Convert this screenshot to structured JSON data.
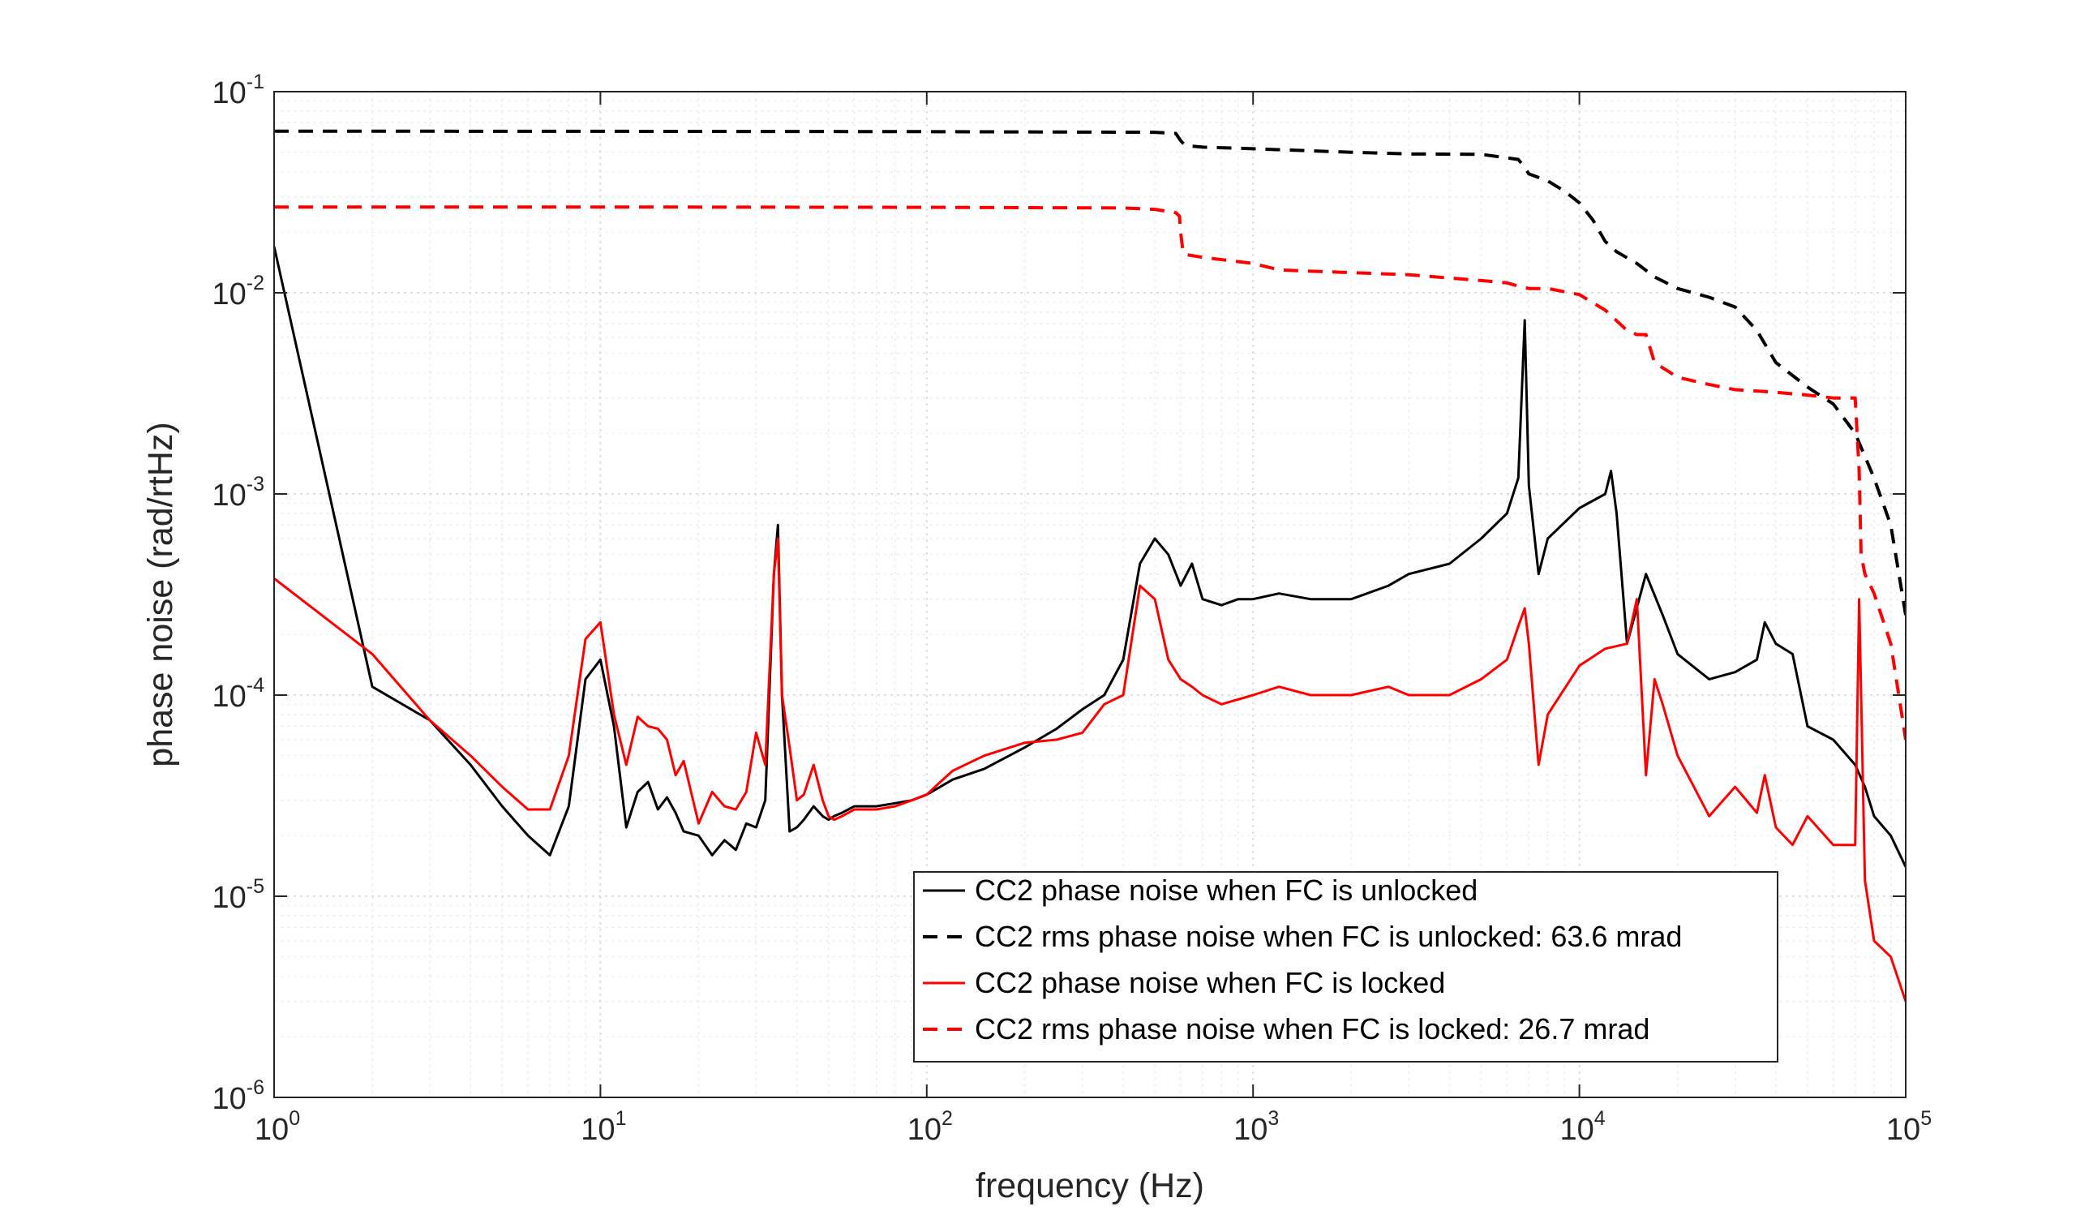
{
  "chart_data": {
    "type": "line",
    "xlabel": "frequency (Hz)",
    "ylabel": "phase noise (rad/rtHz)",
    "x_scale": "log",
    "y_scale": "log",
    "xlim": [
      1,
      100000
    ],
    "ylim": [
      1e-06,
      0.1
    ],
    "grid": true,
    "x_ticks": [
      {
        "value": 1,
        "base": "10",
        "exp": "0"
      },
      {
        "value": 10,
        "base": "10",
        "exp": "1"
      },
      {
        "value": 100,
        "base": "10",
        "exp": "2"
      },
      {
        "value": 1000,
        "base": "10",
        "exp": "3"
      },
      {
        "value": 10000,
        "base": "10",
        "exp": "4"
      },
      {
        "value": 100000,
        "base": "10",
        "exp": "5"
      }
    ],
    "y_ticks": [
      {
        "value": 1e-06,
        "base": "10",
        "exp": "-6"
      },
      {
        "value": 1e-05,
        "base": "10",
        "exp": "-5"
      },
      {
        "value": 0.0001,
        "base": "10",
        "exp": "-4"
      },
      {
        "value": 0.001,
        "base": "10",
        "exp": "-3"
      },
      {
        "value": 0.01,
        "base": "10",
        "exp": "-2"
      },
      {
        "value": 0.1,
        "base": "10",
        "exp": "-1"
      }
    ],
    "legend_position": "bottom-right",
    "series": [
      {
        "name": "CC2 phase noise when FC is unlocked",
        "color": "#000000",
        "style": "solid",
        "x": [
          1,
          2,
          3,
          4,
          5,
          6,
          7,
          8,
          9,
          10,
          11,
          12,
          13,
          14,
          15,
          16,
          17,
          18,
          20,
          22,
          24,
          26,
          28,
          30,
          32,
          34,
          35,
          36,
          38,
          40,
          42,
          45,
          48,
          50,
          52,
          55,
          60,
          70,
          80,
          90,
          100,
          110,
          120,
          150,
          200,
          250,
          300,
          350,
          400,
          450,
          500,
          550,
          600,
          650,
          700,
          800,
          900,
          1000,
          1200,
          1500,
          2000,
          2600,
          3000,
          4000,
          5000,
          6000,
          6500,
          6800,
          7000,
          7500,
          8000,
          10000,
          12000,
          12500,
          13000,
          14000,
          16000,
          18000,
          20000,
          25000,
          30000,
          35000,
          37000,
          40000,
          45000,
          50000,
          60000,
          70000,
          75000,
          80000,
          90000,
          100000
        ],
        "values": [
          0.017,
          0.00011,
          7.5e-05,
          4.5e-05,
          2.8e-05,
          2e-05,
          1.6e-05,
          2.8e-05,
          0.00012,
          0.00015,
          7e-05,
          2.2e-05,
          3.3e-05,
          3.7e-05,
          2.7e-05,
          3.1e-05,
          2.6e-05,
          2.1e-05,
          2e-05,
          1.6e-05,
          1.9e-05,
          1.7e-05,
          2.3e-05,
          2.2e-05,
          3e-05,
          0.0004,
          0.0007,
          0.0001,
          2.1e-05,
          2.2e-05,
          2.4e-05,
          2.8e-05,
          2.5e-05,
          2.4e-05,
          2.5e-05,
          2.6e-05,
          2.8e-05,
          2.8e-05,
          2.9e-05,
          3e-05,
          3.2e-05,
          3.5e-05,
          3.8e-05,
          4.3e-05,
          5.5e-05,
          6.8e-05,
          8.5e-05,
          0.0001,
          0.00015,
          0.00045,
          0.0006,
          0.0005,
          0.00035,
          0.00045,
          0.0003,
          0.00028,
          0.0003,
          0.0003,
          0.00032,
          0.0003,
          0.0003,
          0.00035,
          0.0004,
          0.00045,
          0.0006,
          0.0008,
          0.0012,
          0.0073,
          0.0011,
          0.0004,
          0.0006,
          0.00085,
          0.001,
          0.0013,
          0.0008,
          0.00018,
          0.0004,
          0.00025,
          0.00016,
          0.00012,
          0.00013,
          0.00015,
          0.00023,
          0.00018,
          0.00016,
          7e-05,
          6e-05,
          4.5e-05,
          3.5e-05,
          2.5e-05,
          2e-05,
          1.4e-05
        ]
      },
      {
        "name": "CC2 rms phase noise when FC is unlocked: 63.6 mrad",
        "color": "#000000",
        "style": "dashed",
        "x": [
          1,
          10,
          100,
          500,
          580,
          600,
          620,
          700,
          1000,
          2000,
          3000,
          5000,
          6500,
          6800,
          7000,
          8000,
          9000,
          10000,
          11000,
          12000,
          13000,
          15000,
          17000,
          20000,
          25000,
          30000,
          35000,
          40000,
          50000,
          60000,
          70000,
          80000,
          90000,
          100000
        ],
        "values": [
          0.0636,
          0.0635,
          0.0633,
          0.0628,
          0.062,
          0.057,
          0.054,
          0.053,
          0.052,
          0.05,
          0.049,
          0.0488,
          0.046,
          0.042,
          0.039,
          0.036,
          0.032,
          0.028,
          0.023,
          0.018,
          0.016,
          0.014,
          0.012,
          0.0105,
          0.0095,
          0.0085,
          0.0065,
          0.0045,
          0.0034,
          0.0028,
          0.002,
          0.0012,
          0.0007,
          0.00025
        ]
      },
      {
        "name": "CC2 phase noise when FC is locked",
        "color": "#ff0000",
        "style": "solid",
        "x": [
          1,
          2,
          3,
          4,
          5,
          6,
          7,
          8,
          9,
          10,
          11,
          12,
          13,
          14,
          15,
          16,
          17,
          18,
          20,
          22,
          24,
          26,
          28,
          30,
          32,
          34,
          35,
          36,
          38,
          40,
          42,
          45,
          48,
          50,
          52,
          55,
          60,
          70,
          80,
          90,
          100,
          110,
          120,
          150,
          200,
          250,
          300,
          350,
          400,
          450,
          500,
          550,
          600,
          650,
          700,
          800,
          1000,
          1200,
          1500,
          2000,
          2600,
          3000,
          4000,
          5000,
          6000,
          6500,
          6800,
          7000,
          7500,
          8000,
          10000,
          12000,
          14000,
          15000,
          16000,
          17000,
          18000,
          20000,
          25000,
          30000,
          35000,
          37000,
          40000,
          45000,
          50000,
          60000,
          70000,
          72000,
          75000,
          80000,
          90000,
          100000
        ],
        "values": [
          0.00038,
          0.00016,
          7.5e-05,
          5e-05,
          3.5e-05,
          2.7e-05,
          2.7e-05,
          5e-05,
          0.00019,
          0.00023,
          8e-05,
          4.5e-05,
          7.8e-05,
          7e-05,
          6.8e-05,
          6e-05,
          4e-05,
          4.7e-05,
          2.3e-05,
          3.3e-05,
          2.8e-05,
          2.7e-05,
          3.3e-05,
          6.5e-05,
          4.5e-05,
          0.0004,
          0.0006,
          0.0001,
          5.5e-05,
          3e-05,
          3.2e-05,
          4.5e-05,
          3e-05,
          2.5e-05,
          2.4e-05,
          2.5e-05,
          2.7e-05,
          2.7e-05,
          2.8e-05,
          3e-05,
          3.2e-05,
          3.7e-05,
          4.2e-05,
          5e-05,
          5.8e-05,
          6e-05,
          6.5e-05,
          9e-05,
          0.0001,
          0.00035,
          0.0003,
          0.00015,
          0.00012,
          0.00011,
          0.0001,
          9e-05,
          0.0001,
          0.00011,
          0.0001,
          0.0001,
          0.00011,
          0.0001,
          0.0001,
          0.00012,
          0.00015,
          0.00022,
          0.00027,
          0.00018,
          4.5e-05,
          8e-05,
          0.00014,
          0.00017,
          0.00018,
          0.0003,
          4e-05,
          0.00012,
          9e-05,
          5e-05,
          2.5e-05,
          3.5e-05,
          2.6e-05,
          4e-05,
          2.2e-05,
          1.8e-05,
          2.5e-05,
          1.8e-05,
          1.8e-05,
          0.0003,
          1.2e-05,
          6e-06,
          5e-06,
          3e-06
        ]
      },
      {
        "name": "CC2 rms phase noise when FC is locked: 26.7 mrad",
        "color": "#ff0000",
        "style": "dashed",
        "x": [
          1,
          10,
          100,
          400,
          500,
          580,
          595,
          600,
          610,
          620,
          700,
          1000,
          1200,
          1500,
          2000,
          3000,
          5000,
          6000,
          6500,
          7000,
          8000,
          10000,
          12000,
          14000,
          15000,
          16000,
          17000,
          20000,
          25000,
          30000,
          40000,
          50000,
          60000,
          70000,
          72000,
          73000,
          75000,
          80000,
          90000,
          100000
        ],
        "values": [
          0.0267,
          0.0267,
          0.0266,
          0.0264,
          0.026,
          0.025,
          0.024,
          0.02,
          0.016,
          0.0155,
          0.015,
          0.014,
          0.013,
          0.0128,
          0.0126,
          0.0123,
          0.0115,
          0.0112,
          0.0108,
          0.0105,
          0.0105,
          0.0098,
          0.0082,
          0.0065,
          0.0062,
          0.0062,
          0.0045,
          0.0038,
          0.0035,
          0.0033,
          0.0032,
          0.0031,
          0.003,
          0.003,
          0.0013,
          0.0005,
          0.0004,
          0.00032,
          0.00018,
          6e-05
        ]
      }
    ]
  }
}
